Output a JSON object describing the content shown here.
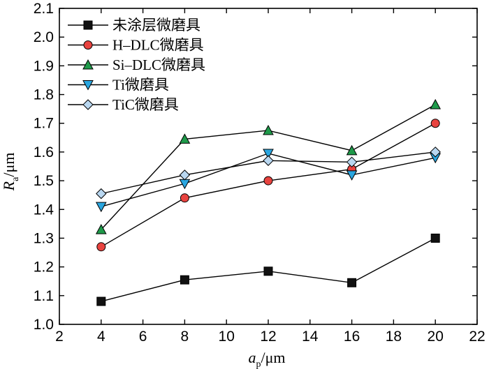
{
  "chart_data": {
    "type": "line",
    "title": "",
    "xlabel": {
      "main": "a",
      "sub": "p",
      "unit": "/μm"
    },
    "ylabel": {
      "main": "R",
      "sub": "a",
      "unit": "/μm"
    },
    "xlim": [
      2,
      22
    ],
    "ylim": [
      1.0,
      2.1
    ],
    "xticks": [
      "2",
      "4",
      "6",
      "8",
      "10",
      "12",
      "14",
      "16",
      "18",
      "20",
      "22"
    ],
    "yticks": [
      "1.0",
      "1.1",
      "1.2",
      "1.3",
      "1.4",
      "1.5",
      "1.6",
      "1.7",
      "1.8",
      "1.9",
      "2.0",
      "2.1"
    ],
    "grid": false,
    "legend_position": "top-left",
    "x": [
      4,
      8,
      12,
      16,
      20
    ],
    "series": [
      {
        "name": "未涂层微磨具",
        "marker": "square",
        "color": "#111111",
        "values": [
          1.08,
          1.155,
          1.185,
          1.145,
          1.3
        ]
      },
      {
        "name": "H–DLC微磨具",
        "marker": "circle",
        "color": "#e8433f",
        "values": [
          1.27,
          1.44,
          1.5,
          1.54,
          1.7
        ]
      },
      {
        "name": "Si–DLC微磨具",
        "marker": "triangle-up",
        "color": "#1f9a4a",
        "values": [
          1.33,
          1.645,
          1.675,
          1.605,
          1.765
        ]
      },
      {
        "name": "Ti微磨具",
        "marker": "triangle-down",
        "color": "#2aa6e0",
        "values": [
          1.41,
          1.49,
          1.595,
          1.52,
          1.58
        ]
      },
      {
        "name": "TiC微磨具",
        "marker": "diamond",
        "color": "#b9d7f0",
        "values": [
          1.455,
          1.52,
          1.57,
          1.565,
          1.6
        ]
      }
    ]
  }
}
